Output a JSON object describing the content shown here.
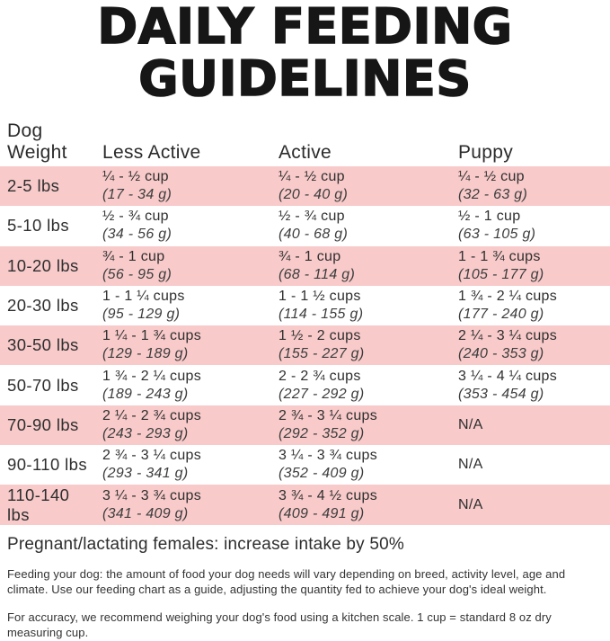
{
  "title": {
    "line1": "DAILY FEEDING",
    "line2": "GUIDELINES"
  },
  "colors": {
    "row_pink": "#f8caca",
    "title_black": "#161616"
  },
  "table": {
    "headers": {
      "weight_line1": "Dog",
      "weight_line2": "Weight",
      "less_active": "Less Active",
      "active": "Active",
      "puppy": "Puppy"
    },
    "rows": [
      {
        "weight": "2-5 lbs",
        "la_cups": "¼ - ½ cup",
        "la_g": "(17 - 34 g)",
        "a_cups": "¼ - ½ cup",
        "a_g": "(20 - 40 g)",
        "p_cups": "¼ - ½ cup",
        "p_g": "(32 - 63 g)"
      },
      {
        "weight": "5-10 lbs",
        "la_cups": "½ - ¾ cup",
        "la_g": "(34 - 56 g)",
        "a_cups": "½ - ¾ cup",
        "a_g": "(40 - 68 g)",
        "p_cups": "½ - 1 cup",
        "p_g": "(63 - 105 g)"
      },
      {
        "weight": "10-20 lbs",
        "la_cups": "¾ - 1 cup",
        "la_g": "(56 - 95 g)",
        "a_cups": "¾ - 1 cup",
        "a_g": "(68 - 114 g)",
        "p_cups": "1 - 1 ¾ cups",
        "p_g": "(105 - 177 g)"
      },
      {
        "weight": "20-30 lbs",
        "la_cups": "1 - 1 ¼ cups",
        "la_g": "(95 - 129 g)",
        "a_cups": "1 - 1 ½ cups",
        "a_g": "(114 - 155 g)",
        "p_cups": "1 ¾ - 2 ¼ cups",
        "p_g": "(177 - 240 g)"
      },
      {
        "weight": "30-50 lbs",
        "la_cups": "1 ¼ - 1 ¾ cups",
        "la_g": "(129 - 189 g)",
        "a_cups": "1 ½ - 2 cups",
        "a_g": "(155 - 227 g)",
        "p_cups": "2 ¼ - 3 ¼ cups",
        "p_g": "(240 - 353 g)"
      },
      {
        "weight": "50-70 lbs",
        "la_cups": "1 ¾ - 2 ¼ cups",
        "la_g": "(189 - 243 g)",
        "a_cups": "2 - 2 ¾ cups",
        "a_g": "(227 - 292 g)",
        "p_cups": "3 ¼ - 4 ¼ cups",
        "p_g": "(353 - 454 g)"
      },
      {
        "weight": "70-90 lbs",
        "la_cups": "2 ¼ - 2 ¾ cups",
        "la_g": "(243 - 293 g)",
        "a_cups": "2 ¾ - 3 ¼ cups",
        "a_g": "(292 - 352 g)",
        "p_cups": "N/A",
        "p_g": ""
      },
      {
        "weight": "90-110 lbs",
        "la_cups": "2 ¾ - 3 ¼ cups",
        "la_g": "(293 - 341 g)",
        "a_cups": "3 ¼ - 3 ¾ cups",
        "a_g": "(352 - 409 g)",
        "p_cups": "N/A",
        "p_g": ""
      },
      {
        "weight": "110-140 lbs",
        "la_cups": "3 ¼ - 3 ¾ cups",
        "la_g": "(341 - 409 g)",
        "a_cups": "3 ¾ - 4 ½ cups",
        "a_g": "(409 - 491 g)",
        "p_cups": "N/A",
        "p_g": ""
      }
    ]
  },
  "notes": {
    "pregnant": "Pregnant/lactating females: increase intake by 50%",
    "feeding": "Feeding your dog: the amount of food your dog needs will vary depending on breed, activity level, age and climate. Use our feeding chart as a guide, adjusting the quantity fed to achieve your dog's ideal weight.",
    "accuracy": "For accuracy, we recommend weighing your dog's food using a kitchen scale. 1 cup = standard 8 oz dry measuring cup."
  }
}
